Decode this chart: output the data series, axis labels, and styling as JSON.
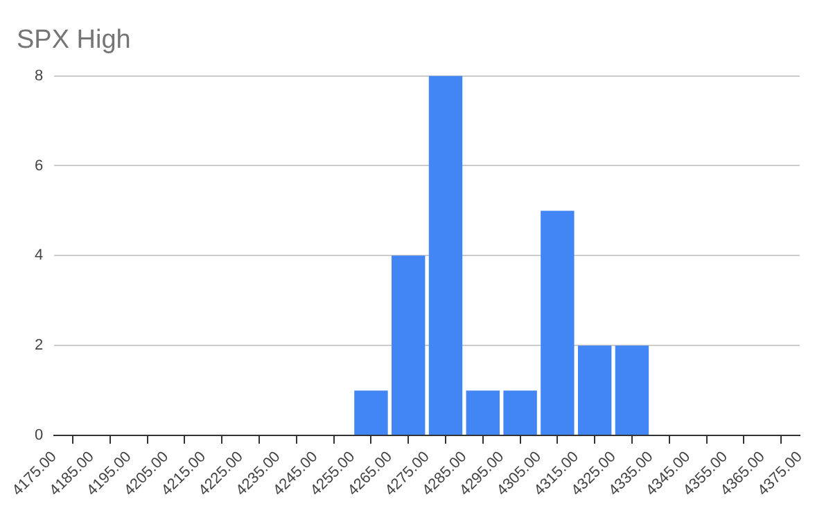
{
  "chart_data": {
    "type": "histogram",
    "title": "SPX High",
    "color": "#4285f4",
    "bins": [
      4175,
      4185,
      4195,
      4205,
      4215,
      4225,
      4235,
      4245,
      4255,
      4265,
      4275,
      4285,
      4295,
      4305,
      4315,
      4325,
      4335,
      4345,
      4355,
      4365,
      4375
    ],
    "values": [
      0,
      0,
      0,
      0,
      0,
      0,
      0,
      0,
      1,
      4,
      8,
      1,
      1,
      5,
      2,
      2,
      0,
      0,
      0,
      0
    ],
    "xlim": [
      4175,
      4375
    ],
    "xticks": [
      {
        "value": 4175,
        "label": "4175.00"
      },
      {
        "value": 4185,
        "label": "4185.00"
      },
      {
        "value": 4195,
        "label": "4195.00"
      },
      {
        "value": 4205,
        "label": "4205.00"
      },
      {
        "value": 4215,
        "label": "4215.00"
      },
      {
        "value": 4225,
        "label": "4225.00"
      },
      {
        "value": 4235,
        "label": "4235.00"
      },
      {
        "value": 4245,
        "label": "4245.00"
      },
      {
        "value": 4255,
        "label": "4255.00"
      },
      {
        "value": 4265,
        "label": "4265.00"
      },
      {
        "value": 4275,
        "label": "4275.00"
      },
      {
        "value": 4285,
        "label": "4285.00"
      },
      {
        "value": 4295,
        "label": "4295.00"
      },
      {
        "value": 4305,
        "label": "4305.00"
      },
      {
        "value": 4315,
        "label": "4315.00"
      },
      {
        "value": 4325,
        "label": "4325.00"
      },
      {
        "value": 4335,
        "label": "4335.00"
      },
      {
        "value": 4345,
        "label": "4345.00"
      },
      {
        "value": 4355,
        "label": "4355.00"
      },
      {
        "value": 4365,
        "label": "4365.00"
      },
      {
        "value": 4375,
        "label": "4375.00"
      }
    ],
    "ylim": [
      0,
      8
    ],
    "yticks": [
      0,
      2,
      4,
      6,
      8
    ],
    "grid": "y",
    "legend": false
  }
}
